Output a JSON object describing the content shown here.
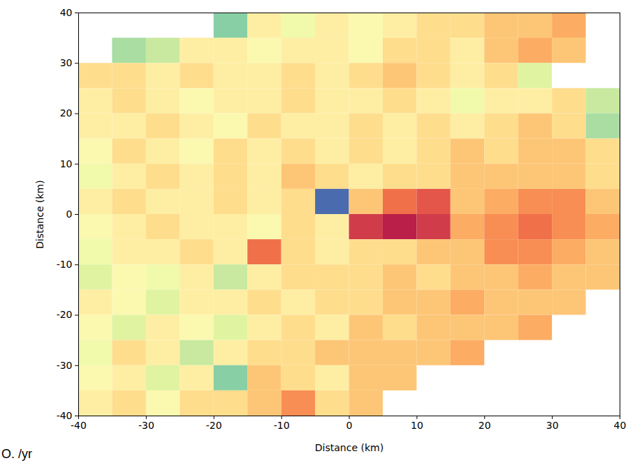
{
  "chart_data": {
    "type": "heatmap",
    "xlabel": "Distance (km)",
    "ylabel": "Distance (km)",
    "caption": "O. /yr",
    "xlim": [
      -40,
      40
    ],
    "ylim": [
      -40,
      40
    ],
    "xticks": [
      -40,
      -30,
      -20,
      -10,
      0,
      10,
      20,
      30,
      40
    ],
    "yticks": [
      -40,
      -30,
      -20,
      -10,
      0,
      10,
      20,
      30,
      40
    ],
    "color": "spectral",
    "zlim": [
      -1,
      1
    ],
    "x": [
      -37.5,
      -32.5,
      -27.5,
      -22.5,
      -17.5,
      -12.5,
      -7.5,
      -2.5,
      2.5,
      7.5,
      12.5,
      17.5,
      22.5,
      27.5,
      32.5,
      37.5
    ],
    "y": [
      37.5,
      32.5,
      27.5,
      22.5,
      17.5,
      12.5,
      7.5,
      2.5,
      -2.5,
      -7.5,
      -12.5,
      -17.5,
      -22.5,
      -27.5,
      -32.5,
      -37.5
    ],
    "z": [
      [
        null,
        null,
        null,
        null,
        -0.5,
        0.1,
        -0.1,
        0.1,
        0.0,
        0.1,
        0.2,
        0.2,
        0.3,
        0.3,
        0.4,
        null
      ],
      [
        null,
        -0.4,
        -0.3,
        0.1,
        0.1,
        0.0,
        0.1,
        0.1,
        0.0,
        0.2,
        0.2,
        0.1,
        0.3,
        0.4,
        0.3,
        null
      ],
      [
        0.2,
        0.2,
        0.1,
        0.2,
        0.1,
        0.1,
        0.2,
        0.1,
        0.2,
        0.3,
        0.2,
        0.1,
        0.2,
        -0.2,
        null,
        null
      ],
      [
        0.1,
        0.2,
        0.1,
        0.0,
        0.1,
        0.1,
        0.2,
        0.1,
        0.1,
        0.2,
        0.1,
        -0.1,
        0.1,
        0.1,
        0.2,
        -0.3
      ],
      [
        0.1,
        0.1,
        0.2,
        0.1,
        0.0,
        0.2,
        0.1,
        0.1,
        0.2,
        0.1,
        0.2,
        0.1,
        0.2,
        0.3,
        0.2,
        -0.4
      ],
      [
        0.0,
        0.2,
        0.1,
        0.0,
        0.2,
        0.1,
        0.2,
        0.1,
        0.2,
        0.1,
        0.2,
        0.3,
        0.2,
        0.3,
        0.3,
        0.2
      ],
      [
        -0.1,
        0.1,
        0.2,
        0.1,
        0.2,
        0.1,
        0.3,
        0.2,
        0.1,
        0.2,
        0.2,
        0.3,
        0.3,
        0.3,
        0.3,
        0.2
      ],
      [
        0.1,
        0.2,
        0.1,
        0.1,
        0.2,
        0.1,
        0.2,
        -0.9,
        0.3,
        0.6,
        0.7,
        0.3,
        0.4,
        0.5,
        0.5,
        0.3
      ],
      [
        0.0,
        0.1,
        0.2,
        0.1,
        0.1,
        0.0,
        0.2,
        0.1,
        0.8,
        0.9,
        0.8,
        0.4,
        0.5,
        0.6,
        0.5,
        0.4
      ],
      [
        -0.1,
        0.1,
        0.1,
        0.2,
        0.1,
        0.6,
        0.2,
        0.1,
        0.2,
        0.2,
        0.3,
        0.3,
        0.5,
        0.5,
        0.4,
        0.3
      ],
      [
        -0.2,
        0.0,
        -0.1,
        0.1,
        -0.3,
        0.1,
        0.2,
        0.2,
        0.2,
        0.3,
        0.2,
        0.3,
        0.3,
        0.4,
        0.3,
        0.3
      ],
      [
        0.1,
        0.0,
        -0.2,
        0.1,
        0.1,
        0.2,
        0.1,
        0.2,
        0.2,
        0.3,
        0.3,
        0.4,
        0.3,
        0.3,
        0.3,
        null
      ],
      [
        0.0,
        -0.2,
        0.1,
        0.0,
        -0.2,
        0.1,
        0.2,
        0.1,
        0.3,
        0.2,
        0.3,
        0.3,
        0.3,
        0.4,
        null,
        null
      ],
      [
        -0.1,
        0.2,
        0.1,
        -0.3,
        0.1,
        0.2,
        0.2,
        0.3,
        0.3,
        0.3,
        0.3,
        0.4,
        null,
        null,
        null,
        null
      ],
      [
        0.0,
        0.1,
        -0.2,
        0.1,
        -0.5,
        0.3,
        0.2,
        0.1,
        0.3,
        0.3,
        null,
        null,
        null,
        null,
        null,
        null
      ],
      [
        0.1,
        0.2,
        0.0,
        0.2,
        0.2,
        0.3,
        0.5,
        0.2,
        0.3,
        null,
        null,
        null,
        null,
        null,
        null,
        null
      ]
    ]
  }
}
